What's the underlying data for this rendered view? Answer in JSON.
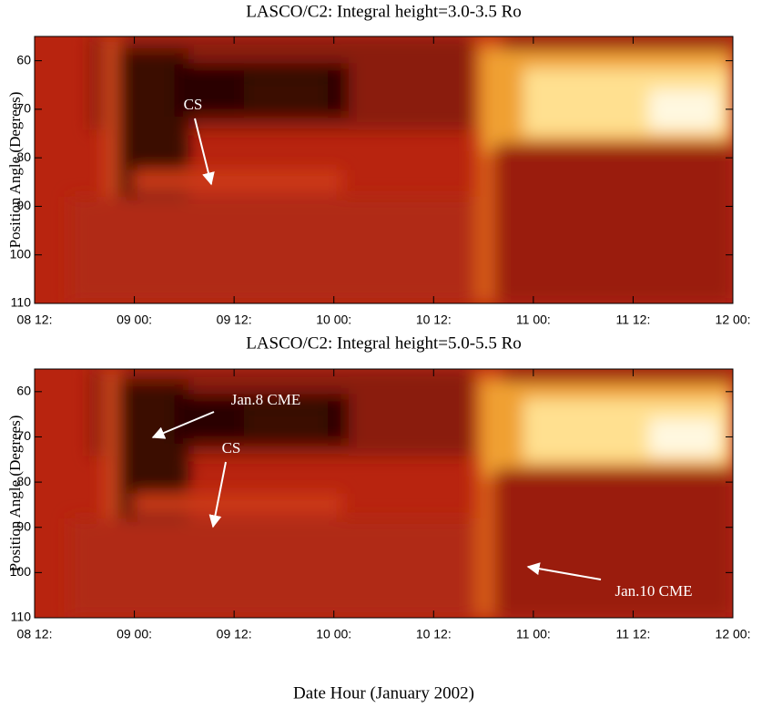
{
  "chart_data": [
    {
      "type": "heatmap",
      "title": "LASCO/C2: Integral height=3.0-3.5 Ro",
      "ylabel": "Position Angle (Degrees)",
      "ylim": [
        110,
        55
      ],
      "yticks": [
        60,
        70,
        80,
        90,
        100,
        110
      ],
      "xticks": [
        "08 12:",
        "09 00:",
        "09 12:",
        "10 00:",
        "10 12:",
        "11 00:",
        "11 12:",
        "12 00:"
      ],
      "annotations": [
        "CS"
      ]
    },
    {
      "type": "heatmap",
      "title": "LASCO/C2: Integral height=5.0-5.5 Ro",
      "ylabel": "Position Angle (Degrees)",
      "ylim": [
        110,
        55
      ],
      "yticks": [
        60,
        70,
        80,
        90,
        100,
        110
      ],
      "xticks": [
        "08 12:",
        "09 00:",
        "09 12:",
        "10 00:",
        "10 12:",
        "11 00:",
        "11 12:",
        "12 00:"
      ],
      "xlabel": "Date Hour (January 2002)",
      "annotations": [
        "Jan.8 CME",
        "CS",
        "Jan.10 CME"
      ]
    }
  ]
}
